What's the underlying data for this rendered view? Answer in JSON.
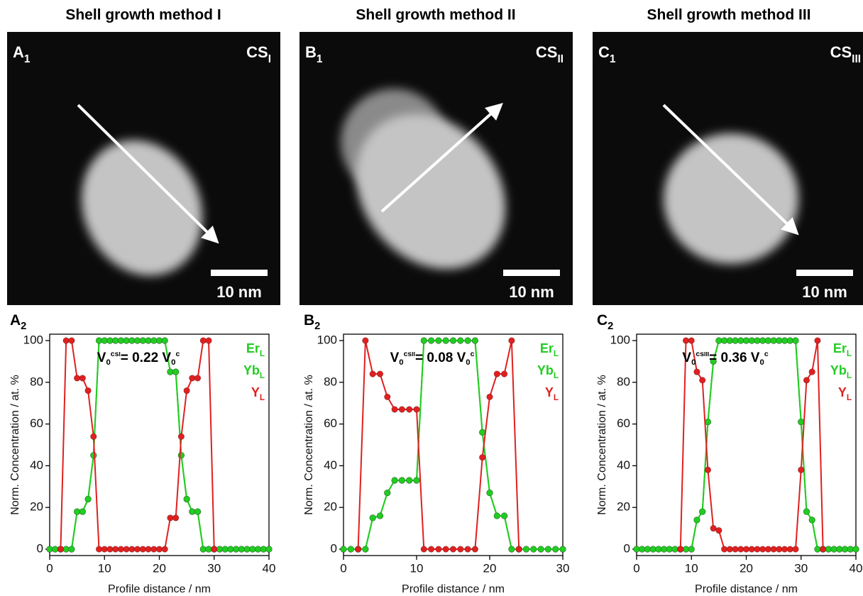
{
  "chart_data": [
    {
      "type": "line",
      "title": "Shell growth method I",
      "image": {
        "label": "A",
        "label_sub": "1",
        "tag": "CS",
        "tag_sub": "I",
        "scale_bar": "10 nm"
      },
      "panel_label": {
        "label": "A",
        "label_sub": "2"
      },
      "annotation": {
        "base": "V",
        "sub": "0",
        "sup": "cs",
        "sup_sub": "I",
        "text": "= 0.22 V",
        "sub2": "0",
        "sup2": "c"
      },
      "xlabel": "Profile distance / nm",
      "ylabel": "Norm. Concentration / at. %",
      "xlim": [
        0,
        40
      ],
      "ylim": [
        0,
        100
      ],
      "xticks": [
        0,
        10,
        20,
        30,
        40
      ],
      "yticks": [
        0,
        20,
        40,
        60,
        80,
        100
      ],
      "x": [
        0,
        1,
        2,
        3,
        4,
        5,
        6,
        7,
        8,
        9,
        10,
        11,
        12,
        13,
        14,
        15,
        16,
        17,
        18,
        19,
        20,
        21,
        22,
        23,
        24,
        25,
        26,
        27,
        28,
        29,
        30,
        31,
        32,
        33,
        34,
        35,
        36,
        37,
        38,
        39,
        40
      ],
      "series": [
        {
          "name": "Er",
          "name_sub": "L",
          "color": "#22cc22",
          "values": [
            0,
            0,
            0,
            0,
            0,
            18,
            18,
            24,
            45,
            100,
            100,
            100,
            100,
            100,
            100,
            100,
            100,
            100,
            100,
            100,
            100,
            100,
            85,
            85,
            45,
            24,
            18,
            18,
            0,
            0,
            0,
            0,
            0,
            0,
            0,
            0,
            0,
            0,
            0,
            0,
            0
          ]
        },
        {
          "name": "Yb",
          "name_sub": "L",
          "color": "#22cc22",
          "values": [
            0,
            0,
            0,
            0,
            0,
            18,
            18,
            24,
            45,
            100,
            100,
            100,
            100,
            100,
            100,
            100,
            100,
            100,
            100,
            100,
            100,
            100,
            85,
            85,
            45,
            24,
            18,
            18,
            0,
            0,
            0,
            0,
            0,
            0,
            0,
            0,
            0,
            0,
            0,
            0,
            0
          ]
        },
        {
          "name": "Y",
          "name_sub": "L",
          "color": "#e02020",
          "values": [
            null,
            null,
            0,
            100,
            100,
            82,
            82,
            76,
            54,
            0,
            0,
            0,
            0,
            0,
            0,
            0,
            0,
            0,
            0,
            0,
            0,
            0,
            15,
            15,
            54,
            76,
            82,
            82,
            100,
            100,
            0,
            null,
            null,
            null,
            null,
            null,
            null,
            null,
            null,
            null,
            null
          ]
        }
      ]
    },
    {
      "type": "line",
      "title": "Shell growth method II",
      "image": {
        "label": "B",
        "label_sub": "1",
        "tag": "CS",
        "tag_sub": "II",
        "scale_bar": "10 nm"
      },
      "panel_label": {
        "label": "B",
        "label_sub": "2"
      },
      "annotation": {
        "base": "V",
        "sub": "0",
        "sup": "cs",
        "sup_sub": "II",
        "text": "= 0.08 V",
        "sub2": "0",
        "sup2": "c"
      },
      "xlabel": "Profile distance / nm",
      "ylabel": "Norm. Concentration / at. %",
      "xlim": [
        0,
        30
      ],
      "ylim": [
        0,
        100
      ],
      "xticks": [
        0,
        10,
        20,
        30
      ],
      "yticks": [
        0,
        20,
        40,
        60,
        80,
        100
      ],
      "x": [
        0,
        1,
        2,
        3,
        4,
        5,
        6,
        7,
        8,
        9,
        10,
        11,
        12,
        13,
        14,
        15,
        16,
        17,
        18,
        19,
        20,
        21,
        22,
        23,
        24,
        25,
        26,
        27,
        28,
        29,
        30
      ],
      "series": [
        {
          "name": "Er",
          "name_sub": "L",
          "color": "#22cc22",
          "values": [
            0,
            0,
            0,
            0,
            15,
            16,
            27,
            33,
            33,
            33,
            33,
            100,
            100,
            100,
            100,
            100,
            100,
            100,
            100,
            56,
            27,
            16,
            16,
            0,
            0,
            0,
            0,
            0,
            0,
            0,
            0
          ]
        },
        {
          "name": "Yb",
          "name_sub": "L",
          "color": "#22cc22",
          "values": [
            0,
            0,
            0,
            0,
            15,
            16,
            27,
            33,
            33,
            33,
            33,
            100,
            100,
            100,
            100,
            100,
            100,
            100,
            100,
            56,
            27,
            16,
            16,
            0,
            0,
            0,
            0,
            0,
            0,
            0,
            0
          ]
        },
        {
          "name": "Y",
          "name_sub": "L",
          "color": "#e02020",
          "values": [
            null,
            null,
            0,
            100,
            84,
            84,
            73,
            67,
            67,
            67,
            67,
            0,
            0,
            0,
            0,
            0,
            0,
            0,
            0,
            44,
            73,
            84,
            84,
            100,
            0,
            null,
            null,
            null,
            null,
            null,
            null
          ]
        }
      ]
    },
    {
      "type": "line",
      "title": "Shell growth method III",
      "image": {
        "label": "C",
        "label_sub": "1",
        "tag": "CS",
        "tag_sub": "III",
        "scale_bar": "10 nm"
      },
      "panel_label": {
        "label": "C",
        "label_sub": "2"
      },
      "annotation": {
        "base": "V",
        "sub": "0",
        "sup": "cs",
        "sup_sub": "III",
        "text": "= 0.36 V",
        "sub2": "0",
        "sup2": "c"
      },
      "xlabel": "Profile distance / nm",
      "ylabel": "Norm. Concentration / at. %",
      "xlim": [
        0,
        40
      ],
      "ylim": [
        0,
        100
      ],
      "xticks": [
        0,
        10,
        20,
        30,
        40
      ],
      "yticks": [
        0,
        20,
        40,
        60,
        80,
        100
      ],
      "x": [
        0,
        1,
        2,
        3,
        4,
        5,
        6,
        7,
        8,
        9,
        10,
        11,
        12,
        13,
        14,
        15,
        16,
        17,
        18,
        19,
        20,
        21,
        22,
        23,
        24,
        25,
        26,
        27,
        28,
        29,
        30,
        31,
        32,
        33,
        34,
        35,
        36,
        37,
        38,
        39,
        40
      ],
      "series": [
        {
          "name": "Er",
          "name_sub": "L",
          "color": "#22cc22",
          "values": [
            0,
            0,
            0,
            0,
            0,
            0,
            0,
            0,
            0,
            0,
            0,
            14,
            18,
            61,
            90,
            100,
            100,
            100,
            100,
            100,
            100,
            100,
            100,
            100,
            100,
            100,
            100,
            100,
            100,
            100,
            61,
            18,
            14,
            0,
            0,
            0,
            0,
            0,
            0,
            0,
            0
          ]
        },
        {
          "name": "Yb",
          "name_sub": "L",
          "color": "#22cc22",
          "values": [
            0,
            0,
            0,
            0,
            0,
            0,
            0,
            0,
            0,
            0,
            0,
            14,
            18,
            61,
            90,
            100,
            100,
            100,
            100,
            100,
            100,
            100,
            100,
            100,
            100,
            100,
            100,
            100,
            100,
            100,
            61,
            18,
            14,
            0,
            0,
            0,
            0,
            0,
            0,
            0,
            0
          ]
        },
        {
          "name": "Y",
          "name_sub": "L",
          "color": "#e02020",
          "values": [
            null,
            null,
            null,
            null,
            null,
            null,
            null,
            null,
            0,
            100,
            100,
            85,
            81,
            38,
            10,
            9,
            0,
            0,
            0,
            0,
            0,
            0,
            0,
            0,
            0,
            0,
            0,
            0,
            0,
            0,
            38,
            81,
            85,
            100,
            0,
            null,
            null,
            null,
            null,
            null,
            null
          ]
        }
      ]
    }
  ]
}
